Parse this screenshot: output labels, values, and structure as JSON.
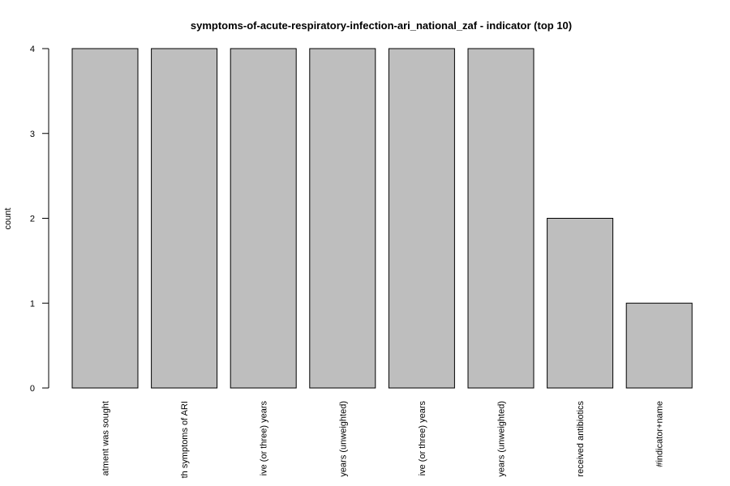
{
  "chart_data": {
    "type": "bar",
    "title": "symptoms-of-acute-respiratory-infection-ari_national_zaf - indicator (top 10)",
    "xlabel": "",
    "ylabel": "count",
    "ylim": [
      0,
      4
    ],
    "yticks": [
      0,
      1,
      2,
      3,
      4
    ],
    "categories": [
      "atment was sought",
      "th symptoms of ARI",
      "ive (or three) years",
      "years (unweighted)",
      "ive (or three) years",
      "years (unweighted)",
      "received antibiotics",
      "#indicator+name"
    ],
    "values": [
      4,
      4,
      4,
      4,
      4,
      4,
      2,
      1
    ],
    "bar_color": "#bebebe",
    "grid": false,
    "legend": "none"
  }
}
